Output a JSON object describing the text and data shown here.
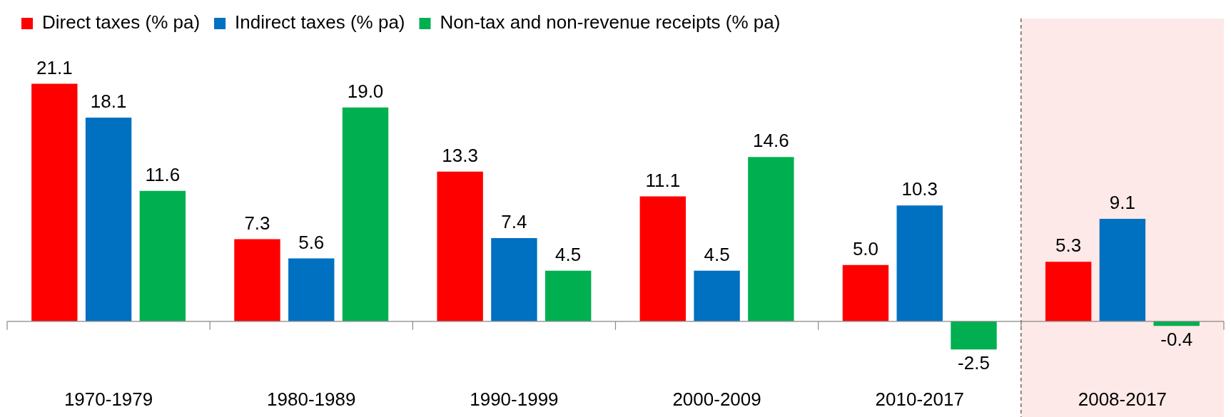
{
  "chart_data": {
    "type": "bar",
    "categories": [
      "1970-1979",
      "1980-1989",
      "1990-1999",
      "2000-2009",
      "2010-2017",
      "2008-2017"
    ],
    "series": [
      {
        "name": "Direct taxes (% pa)",
        "color": "#ff0000",
        "values": [
          21.1,
          7.3,
          13.3,
          11.1,
          5.0,
          5.3
        ],
        "value_labels": [
          "21.1",
          "7.3",
          "13.3",
          "11.1",
          "5.0",
          "5.3"
        ]
      },
      {
        "name": "Indirect taxes (% pa)",
        "color": "#0070c0",
        "values": [
          18.1,
          5.6,
          7.4,
          4.5,
          10.3,
          9.1
        ],
        "value_labels": [
          "18.1",
          "5.6",
          "7.4",
          "4.5",
          "10.3",
          "9.1"
        ]
      },
      {
        "name": "Non-tax and non-revenue receipts (% pa)",
        "color": "#00b050",
        "values": [
          11.6,
          19.0,
          4.5,
          14.6,
          -2.5,
          -0.4
        ],
        "value_labels": [
          "11.6",
          "19.0",
          "4.5",
          "14.6",
          "-2.5",
          "-0.4"
        ]
      }
    ],
    "legend": "top",
    "bands": [
      {
        "axis": "x",
        "from": "2008-2017",
        "to": "2008-2017",
        "color": "#fde9e7"
      }
    ]
  }
}
